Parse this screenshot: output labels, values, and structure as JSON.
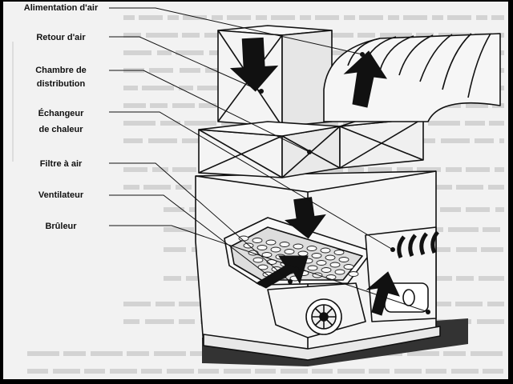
{
  "labels": {
    "supply": "Alimentation d'air",
    "return": "Retour d'air",
    "plenum_1": "Chambre de",
    "plenum_2": "distribution",
    "exchanger_1": "Échangeur",
    "exchanger_2": "de chaleur",
    "filter": "Filtre à air",
    "fan": "Ventilateur",
    "burner": "Brûleur"
  },
  "colors": {
    "page": "#f2f2f2",
    "border": "#000000",
    "ink": "#111111",
    "showthrough": "#aaaaaa"
  }
}
